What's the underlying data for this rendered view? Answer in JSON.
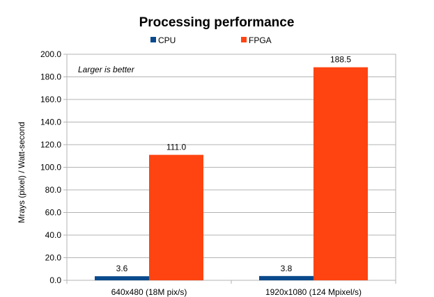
{
  "chart_data": {
    "type": "bar",
    "title": "Processing performance",
    "ylabel": "Mrays (pixel) / Watt-second",
    "xlabel": "",
    "annotation": "Larger is better",
    "categories": [
      "640x480 (18M pix/s)",
      "1920x1080 (124 Mpixel/s)"
    ],
    "series": [
      {
        "name": "CPU",
        "color": "#0a4a8c",
        "values": [
          3.6,
          3.8
        ],
        "labels": [
          "3.6",
          "3.8"
        ]
      },
      {
        "name": "FPGA",
        "color": "#ff4411",
        "values": [
          111.0,
          188.5
        ],
        "labels": [
          "111.0",
          "188.5"
        ]
      }
    ],
    "ylim": [
      0,
      200
    ],
    "yticks": [
      0,
      20,
      40,
      60,
      80,
      100,
      120,
      140,
      160,
      180,
      200
    ],
    "ytick_labels": [
      "0.0",
      "20.0",
      "40.0",
      "60.0",
      "80.0",
      "100.0",
      "120.0",
      "140.0",
      "160.0",
      "180.0",
      "200.0"
    ],
    "grid": true,
    "legend_position": "top"
  }
}
